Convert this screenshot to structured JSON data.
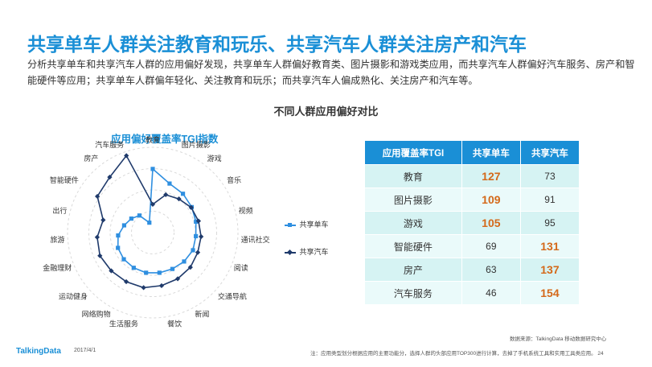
{
  "header": {
    "title": "共享单车人群关注教育和玩乐、共享汽车人群关注房产和汽车",
    "description": "分析共享单车和共享汽车人群的应用偏好发现，共享单车人群偏好教育类、图片摄影和游戏类应用，而共享汽车人群偏好汽车服务、房产和智能硬件等应用；共享单车人群偏年轻化、关注教育和玩乐；而共享汽车人偏成熟化、关注房产和汽车等。"
  },
  "chart_subtitle": "不同人群应用偏好对比",
  "colors": {
    "accent": "#1a8fd6",
    "bike": "#2f8fe0",
    "car": "#1f3a6b",
    "highlight": "#d4691a"
  },
  "chart_data": [
    {
      "type": "radar",
      "title": "应用偏好覆盖率TGI指数",
      "categories": [
        "教育",
        "图片摄影",
        "游戏",
        "音乐",
        "视频",
        "通讯社交",
        "阅读",
        "交通导航",
        "新闻",
        "餐饮",
        "生活服务",
        "网络购物",
        "运动健身",
        "金融理财",
        "旅游",
        "出行",
        "智能硬件",
        "房产",
        "汽车服务"
      ],
      "series": [
        {
          "name": "共享单车",
          "values": [
            127,
            109,
            105,
            101,
            98,
            96,
            97,
            95,
            93,
            92,
            92,
            91,
            90,
            88,
            83,
            75,
            69,
            63,
            46
          ]
        },
        {
          "name": "共享汽车",
          "values": [
            73,
            91,
            95,
            100,
            102,
            104,
            105,
            108,
            110,
            112,
            115,
            115,
            116,
            118,
            115,
            108,
            131,
            137,
            154
          ]
        }
      ],
      "legend": "right",
      "grid": true
    },
    {
      "type": "table",
      "columns": [
        "应用覆盖率TGI",
        "共享单车",
        "共享汽车"
      ],
      "rows": [
        {
          "label": "教育",
          "bike": "127",
          "car": "73",
          "hi": "bike"
        },
        {
          "label": "图片摄影",
          "bike": "109",
          "car": "91",
          "hi": "bike"
        },
        {
          "label": "游戏",
          "bike": "105",
          "car": "95",
          "hi": "bike"
        },
        {
          "label": "智能硬件",
          "bike": "69",
          "car": "131",
          "hi": "car"
        },
        {
          "label": "房产",
          "bike": "63",
          "car": "137",
          "hi": "car"
        },
        {
          "label": "汽车服务",
          "bike": "46",
          "car": "154",
          "hi": "car"
        }
      ]
    }
  ],
  "footer": {
    "source": "数据来源：TalkingData 移动数据研究中心",
    "note": "注：应用类型划分根据应用的主要功能分，选择人群的头部应用TOP300进行计算，去掉了手机系统工具和实用工具类应用。",
    "page": "24",
    "logo": "TalkingData",
    "date": "2017/4/1"
  }
}
